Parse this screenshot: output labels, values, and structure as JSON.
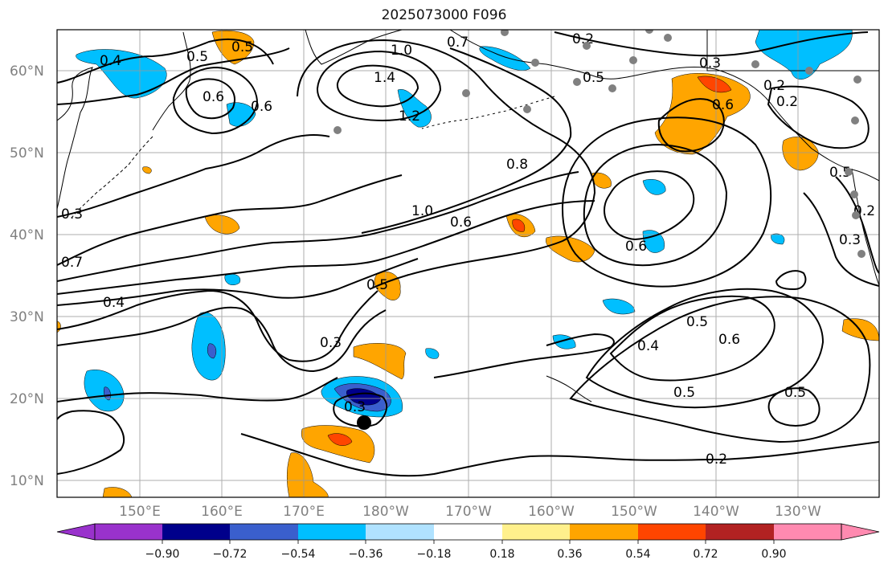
{
  "title": "2025073000 F096",
  "map": {
    "region": "North Pacific",
    "lon_range": [
      "140°E",
      "120°W"
    ],
    "lat_range": [
      "8°N",
      "65°N"
    ],
    "gridlines": true,
    "lat_labels": [
      "60°N",
      "50°N",
      "40°N",
      "30°N",
      "20°N",
      "10°N"
    ],
    "lon_labels": [
      "150°E",
      "160°E",
      "170°E",
      "180°W",
      "170°W",
      "160°W",
      "150°W",
      "140°W",
      "130°W"
    ],
    "contour_labels": [
      "0.4",
      "0.5",
      "0.6",
      "0.5",
      "0.6",
      "1.0",
      "1.4",
      "1.2",
      "0.2",
      "0.7",
      "0.2",
      "0.5",
      "0.3",
      "0.6",
      "0.8",
      "1.0",
      "0.6",
      "0.6",
      "0.7",
      "0.4",
      "0.5",
      "0.3",
      "0.3",
      "0.4",
      "0.5",
      "0.6",
      "0.5",
      "0.5",
      "0.2",
      "0.2",
      "0.3",
      "0.5",
      "0.2",
      "0.3"
    ],
    "storm_marker": "black-circle"
  },
  "colorbar": {
    "ticks": [
      "−0.90",
      "−0.72",
      "−0.54",
      "−0.36",
      "−0.18",
      "0.18",
      "0.36",
      "0.54",
      "0.72",
      "0.90"
    ],
    "colors": [
      "#9932cc",
      "#00008b",
      "#3a5fcd",
      "#00bfff",
      "#b0e2ff",
      "#ffffff",
      "#fff08c",
      "#ffa500",
      "#ff4500",
      "#b22222",
      "#ff8ab0"
    ]
  },
  "colors": {
    "land": "#000000",
    "contour": "#000000",
    "grid": "#999999",
    "station_dot": "#808080",
    "label_text": "#808080"
  }
}
